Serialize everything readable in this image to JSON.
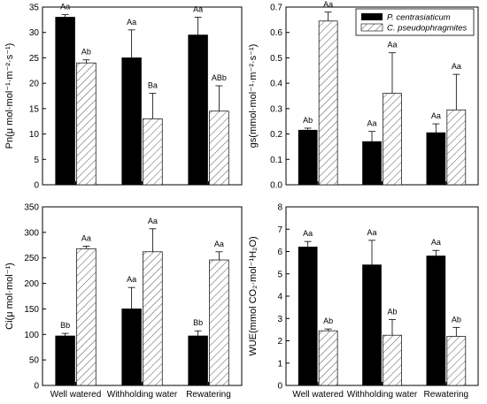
{
  "colors": {
    "series1": "#000000",
    "series2": "#ffffff",
    "hatch": "#555555",
    "axis": "#000000"
  },
  "legend": {
    "panel": 1,
    "entries": [
      {
        "label": "P. centrasiaticum",
        "style": "solid"
      },
      {
        "label": "C. pseudophragmites",
        "style": "hatched"
      }
    ]
  },
  "chart_data": [
    {
      "type": "bar",
      "categories": [
        "",
        "",
        ""
      ],
      "ylabel": "Pn(μ mol·mol⁻¹·m⁻²·s⁻¹)",
      "ylim": [
        0,
        35
      ],
      "yticks": [
        0,
        5,
        10,
        15,
        20,
        25,
        30,
        35
      ],
      "series": [
        {
          "name": "P. centrasiaticum",
          "values": [
            33.0,
            25.0,
            29.5
          ],
          "errors": [
            0.5,
            5.5,
            3.5
          ],
          "sig": [
            "Aa",
            "Aa",
            "Aa"
          ]
        },
        {
          "name": "C. pseudophragmites",
          "values": [
            24.0,
            13.0,
            14.5
          ],
          "errors": [
            0.6,
            5.0,
            5.0
          ],
          "sig": [
            "Ab",
            "Ba",
            "ABb"
          ]
        }
      ]
    },
    {
      "type": "bar",
      "categories": [
        "",
        "",
        ""
      ],
      "ylabel": "gs(mmol·mol⁻¹·m⁻²·s⁻¹)",
      "ylim": [
        0,
        0.7
      ],
      "yticks": [
        0.0,
        0.1,
        0.2,
        0.3,
        0.4,
        0.5,
        0.6,
        0.7
      ],
      "series": [
        {
          "name": "P. centrasiaticum",
          "values": [
            0.215,
            0.17,
            0.205
          ],
          "errors": [
            0.008,
            0.04,
            0.035
          ],
          "sig": [
            "Ab",
            "Aa",
            "Aa"
          ]
        },
        {
          "name": "C. pseudophragmites",
          "values": [
            0.645,
            0.36,
            0.295
          ],
          "errors": [
            0.035,
            0.16,
            0.14
          ],
          "sig": [
            "Aa",
            "Aa",
            "Aa"
          ]
        }
      ]
    },
    {
      "type": "bar",
      "categories": [
        "Well watered",
        "Withholding water",
        "Rewatering"
      ],
      "ylabel": "Ci(μ mol·mol⁻¹)",
      "ylim": [
        0,
        350
      ],
      "yticks": [
        0,
        50,
        100,
        150,
        200,
        250,
        300,
        350
      ],
      "series": [
        {
          "name": "P. centrasiaticum",
          "values": [
            97,
            150,
            97
          ],
          "errors": [
            5,
            42,
            10
          ],
          "sig": [
            "Bb",
            "Aa",
            "Bb"
          ]
        },
        {
          "name": "C. pseudophragmites",
          "values": [
            268,
            262,
            246
          ],
          "errors": [
            5,
            45,
            16
          ],
          "sig": [
            "Aa",
            "Aa",
            "Aa"
          ]
        }
      ]
    },
    {
      "type": "bar",
      "categories": [
        "Well watered",
        "Withholding water",
        "Rewatering"
      ],
      "ylabel": "WUE(mmol CO₂·mol⁻¹H₂O)",
      "ylim": [
        0,
        8
      ],
      "yticks": [
        0,
        1,
        2,
        3,
        4,
        5,
        6,
        7,
        8
      ],
      "series": [
        {
          "name": "P. centrasiaticum",
          "values": [
            6.2,
            5.4,
            5.8
          ],
          "errors": [
            0.25,
            1.1,
            0.25
          ],
          "sig": [
            "Aa",
            "Aa",
            "Aa"
          ]
        },
        {
          "name": "C. pseudophragmites",
          "values": [
            2.45,
            2.25,
            2.2
          ],
          "errors": [
            0.08,
            0.7,
            0.4
          ],
          "sig": [
            "Ab",
            "Ab",
            "Ab"
          ]
        }
      ]
    }
  ]
}
